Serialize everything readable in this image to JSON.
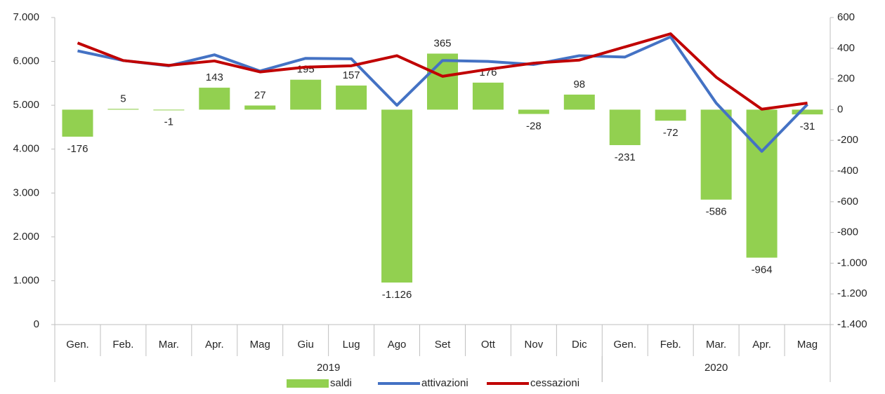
{
  "chart_data": {
    "type": "combo",
    "categories": [
      "Gen.",
      "Feb.",
      "Mar.",
      "Apr.",
      "Mag",
      "Giu",
      "Lug",
      "Ago",
      "Set",
      "Ott",
      "Nov",
      "Dic",
      "Gen.",
      "Feb.",
      "Mar.",
      "Apr.",
      "Mag"
    ],
    "groups": [
      {
        "label": "2019",
        "size": 12
      },
      {
        "label": "2020",
        "size": 5
      }
    ],
    "series": [
      {
        "name": "saldi",
        "type": "bar",
        "axis": "y2",
        "color": "#92d050",
        "values": [
          -176,
          5,
          -1,
          143,
          27,
          195,
          157,
          -1126,
          365,
          176,
          -28,
          98,
          -231,
          -72,
          -586,
          -964,
          -31
        ],
        "value_labels": [
          "-176",
          "5",
          "-1",
          "143",
          "27",
          "195",
          "157",
          "-1.126",
          "365",
          "176",
          "-28",
          "98",
          "-231",
          "-72",
          "-586",
          "-964",
          "-31"
        ]
      },
      {
        "name": "attivazioni",
        "type": "line",
        "color": "#4472c4",
        "values": [
          6240,
          6020,
          5900,
          6150,
          5780,
          6070,
          6060,
          5000,
          6020,
          6000,
          5930,
          6130,
          6100,
          6560,
          5050,
          3950,
          5020
        ]
      },
      {
        "name": "cessazioni",
        "type": "line",
        "color": "#c00000",
        "values": [
          6420,
          6020,
          5910,
          6010,
          5760,
          5870,
          5900,
          6130,
          5660,
          5820,
          5960,
          6030,
          6330,
          6630,
          5640,
          4910,
          5050
        ]
      }
    ],
    "ylim": [
      0,
      7000
    ],
    "yticks": [
      0,
      {
        "value": 1000,
        "label": "1.000"
      },
      {
        "value": 2000,
        "label": "2.000"
      },
      {
        "value": 3000,
        "label": "3.000"
      },
      {
        "value": 4000,
        "label": "4.000"
      },
      {
        "value": 5000,
        "label": "5.000"
      },
      {
        "value": 6000,
        "label": "6.000"
      },
      {
        "value": 7000,
        "label": "7.000"
      }
    ],
    "y2lim": [
      -1400,
      600
    ],
    "y2ticks": [
      {
        "value": -1400,
        "label": "-1.400"
      },
      {
        "value": -1200,
        "label": "-1.200"
      },
      {
        "value": -1000,
        "label": "-1.000"
      },
      -800,
      -600,
      -400,
      -200,
      0,
      200,
      400,
      600
    ],
    "legend": "bottom"
  }
}
